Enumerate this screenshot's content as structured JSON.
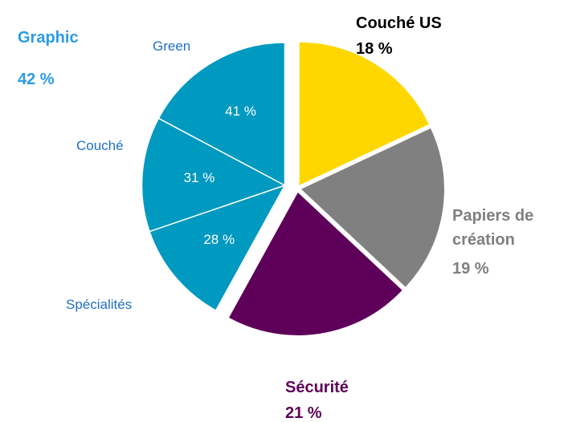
{
  "chart_data": {
    "type": "pie",
    "categories": [
      "Couché US",
      "Papiers de création",
      "Sécurité",
      "Graphic"
    ],
    "values": [
      18,
      19,
      21,
      42
    ],
    "value_labels": [
      "18 %",
      "19 %",
      "21 %",
      "42 %"
    ],
    "colors": [
      "#ffd700",
      "#808080",
      "#5e0059",
      "#0099c0"
    ],
    "label_colors": [
      "#000000",
      "#7f7f7f",
      "#5e0059",
      "#2a9be6"
    ],
    "exploded": "Graphic",
    "breakdown": {
      "parent": "Graphic",
      "categories": [
        "Spécialités",
        "Couché",
        "Green"
      ],
      "values": [
        28,
        31,
        41
      ],
      "value_labels": [
        "28 %",
        "31 %",
        "41 %"
      ]
    }
  }
}
